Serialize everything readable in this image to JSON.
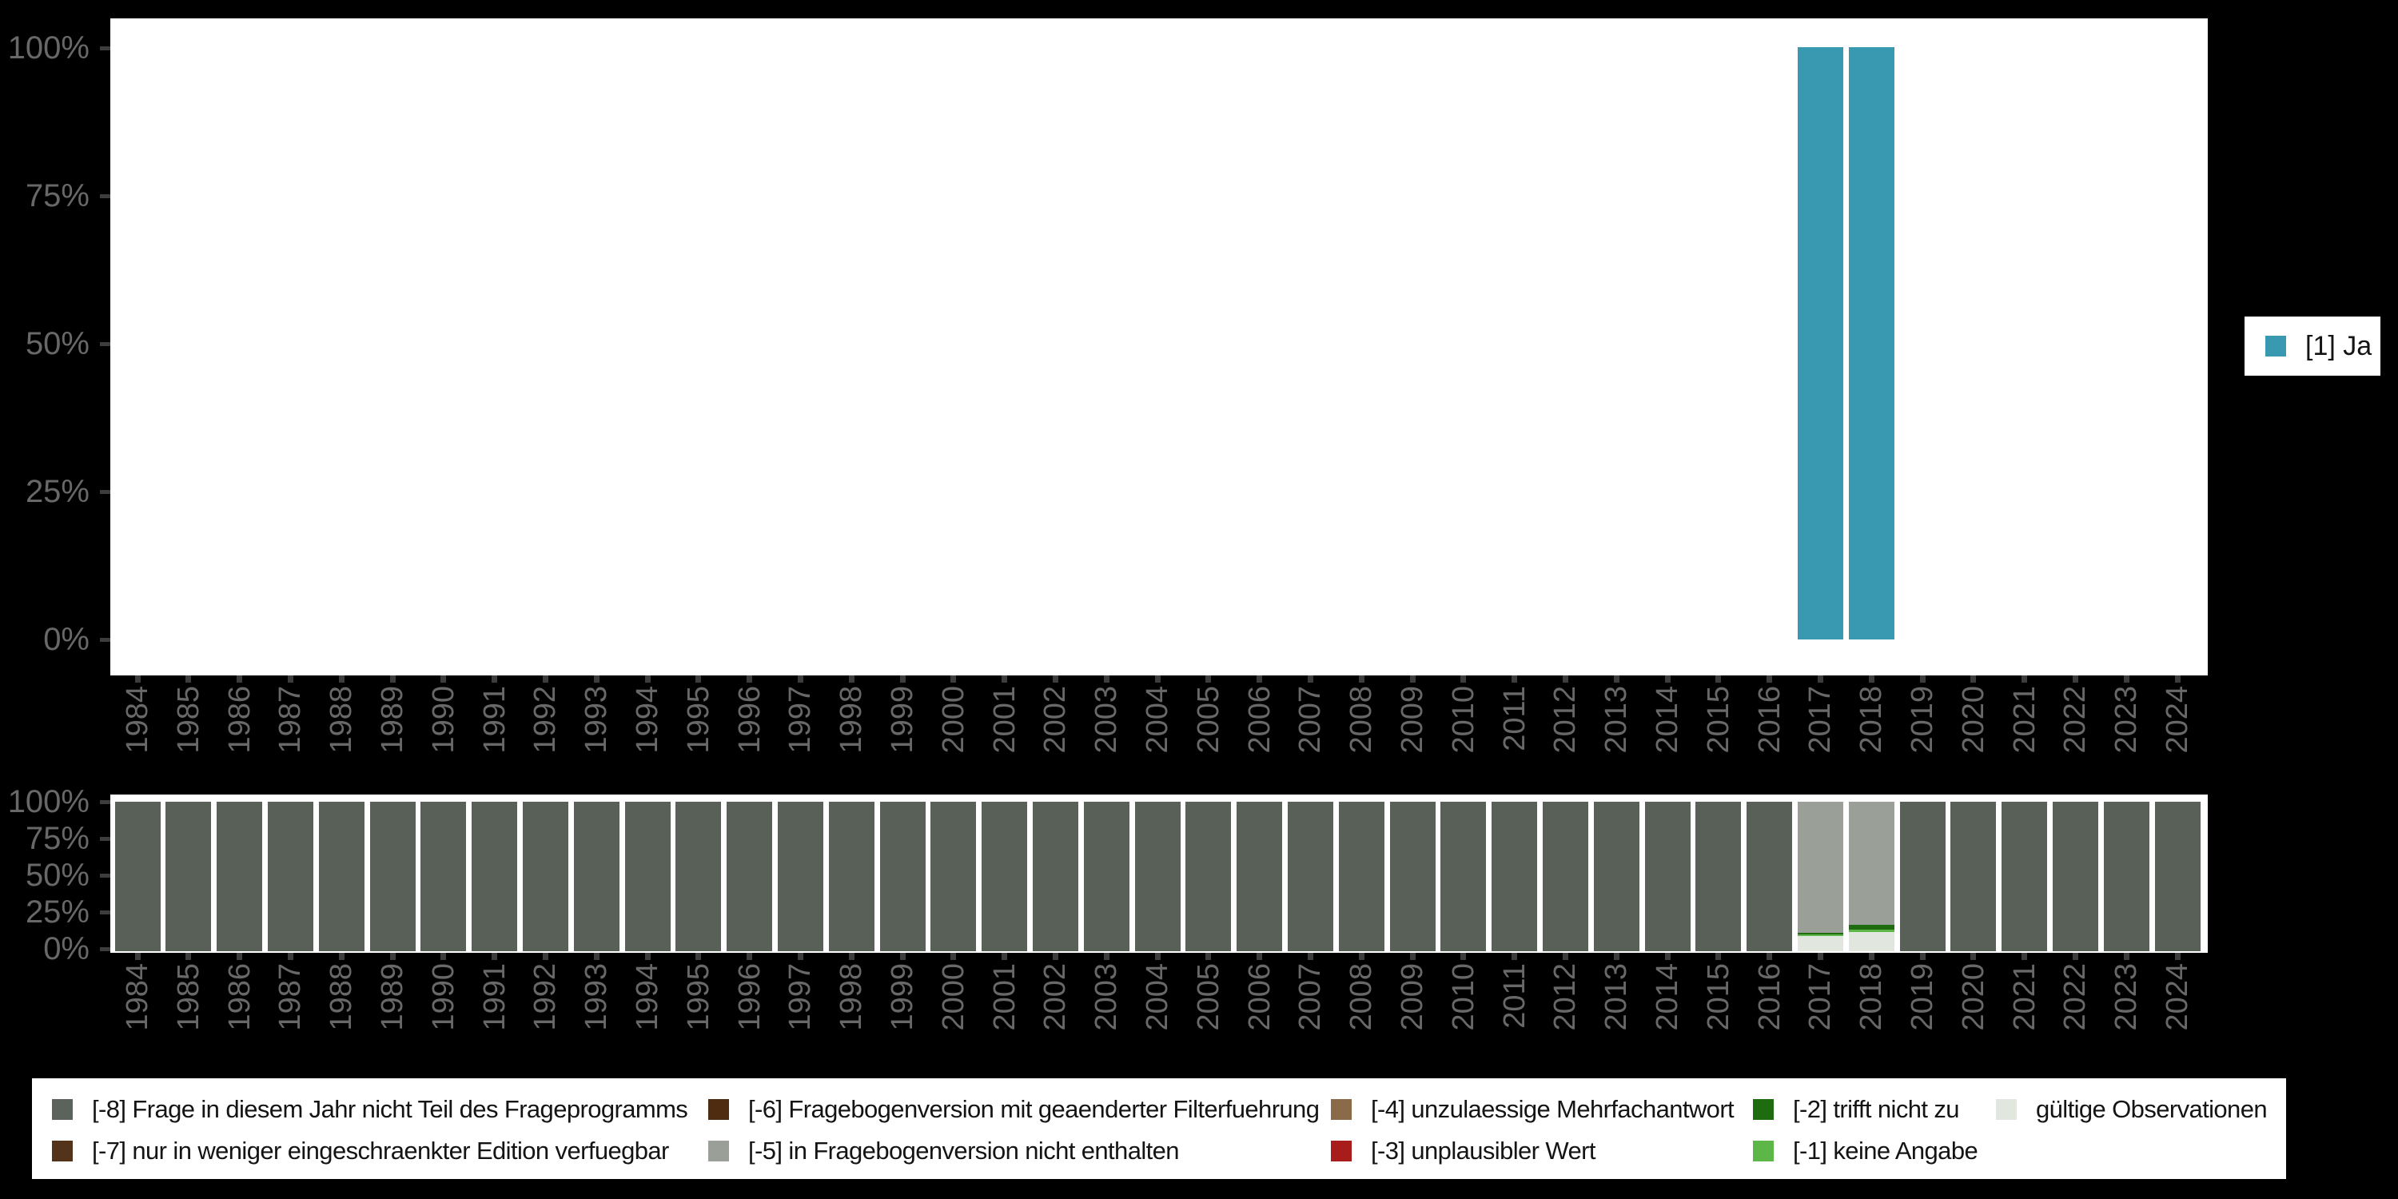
{
  "colors": {
    "page_background": "#000000",
    "plot_background": "#ffffff",
    "axis_text": "#686868",
    "tick": "#3d3d3d",
    "legend_text": "#141414",
    "teal": "#3999b0"
  },
  "axis": {
    "ytick_labels": [
      "100%",
      "75%",
      "50%",
      "25%",
      "0%"
    ]
  },
  "legend1": {
    "label": "[1] Ja",
    "color": "#3999b0"
  },
  "legend2": {
    "items": [
      {
        "label": "[-8] Frage in diesem Jahr nicht Teil des Frageprogramms",
        "color": "#5c635c",
        "col": 0,
        "row": 0
      },
      {
        "label": "[-7] nur in weniger eingeschraenkter Edition verfuegbar",
        "color": "#53341a",
        "col": 0,
        "row": 1
      },
      {
        "label": "[-6] Fragebogenversion mit geaenderter Filterfuehrung",
        "color": "#4f2b10",
        "col": 1,
        "row": 0
      },
      {
        "label": "[-5] in Fragebogenversion nicht enthalten",
        "color": "#9aa097",
        "col": 1,
        "row": 1
      },
      {
        "label": "[-4] unzulaessige Mehrfachantwort",
        "color": "#8a6a48",
        "col": 2,
        "row": 0
      },
      {
        "label": "[-3] unplausibler Wert",
        "color": "#a81c1c",
        "col": 2,
        "row": 1
      },
      {
        "label": "[-2] trifft nicht zu",
        "color": "#1e6b10",
        "col": 3,
        "row": 0
      },
      {
        "label": "[-1] keine Angabe",
        "color": "#5cb648",
        "col": 3,
        "row": 1
      },
      {
        "label": "gültige Observationen",
        "color": "#e1e6df",
        "col": 4,
        "row": 0
      }
    ]
  },
  "chart_data": [
    {
      "type": "bar",
      "stacked": true,
      "title": "",
      "xlabel": "",
      "ylabel": "",
      "ylim": [
        0,
        100
      ],
      "ytick_labels": [
        "100%",
        "75%",
        "50%",
        "25%",
        "0%"
      ],
      "grid": false,
      "legend_position": "right",
      "categories": [
        "1984",
        "1985",
        "1986",
        "1987",
        "1988",
        "1989",
        "1990",
        "1991",
        "1992",
        "1993",
        "1994",
        "1995",
        "1996",
        "1997",
        "1998",
        "1999",
        "2000",
        "2001",
        "2002",
        "2003",
        "2004",
        "2005",
        "2006",
        "2007",
        "2008",
        "2009",
        "2010",
        "2011",
        "2012",
        "2013",
        "2014",
        "2015",
        "2016",
        "2017",
        "2018",
        "2019",
        "2020",
        "2021",
        "2022",
        "2023",
        "2024"
      ],
      "series": [
        {
          "name": "[1] Ja",
          "color": "#3999b0",
          "values": [
            0,
            0,
            0,
            0,
            0,
            0,
            0,
            0,
            0,
            0,
            0,
            0,
            0,
            0,
            0,
            0,
            0,
            0,
            0,
            0,
            0,
            0,
            0,
            0,
            0,
            0,
            0,
            0,
            0,
            0,
            0,
            0,
            0,
            100,
            100,
            0,
            0,
            0,
            0,
            0,
            0
          ]
        }
      ]
    },
    {
      "type": "bar",
      "stacked": true,
      "title": "",
      "xlabel": "",
      "ylabel": "",
      "ylim": [
        0,
        100
      ],
      "ytick_labels": [
        "100%",
        "75%",
        "50%",
        "25%",
        "0%"
      ],
      "grid": false,
      "legend_position": "bottom",
      "categories": [
        "1984",
        "1985",
        "1986",
        "1987",
        "1988",
        "1989",
        "1990",
        "1991",
        "1992",
        "1993",
        "1994",
        "1995",
        "1996",
        "1997",
        "1998",
        "1999",
        "2000",
        "2001",
        "2002",
        "2003",
        "2004",
        "2005",
        "2006",
        "2007",
        "2008",
        "2009",
        "2010",
        "2011",
        "2012",
        "2013",
        "2014",
        "2015",
        "2016",
        "2017",
        "2018",
        "2019",
        "2020",
        "2021",
        "2022",
        "2023",
        "2024"
      ],
      "series": [
        {
          "name": "[-8] Frage in diesem Jahr nicht Teil des Frageprogramms",
          "color": "#596057",
          "values": [
            100,
            100,
            100,
            100,
            100,
            100,
            100,
            100,
            100,
            100,
            100,
            100,
            100,
            100,
            100,
            100,
            100,
            100,
            100,
            100,
            100,
            100,
            100,
            100,
            100,
            100,
            100,
            100,
            100,
            100,
            100,
            100,
            100,
            0,
            0,
            100,
            100,
            100,
            100,
            100,
            100
          ]
        },
        {
          "name": "[-5] in Fragebogenversion nicht enthalten",
          "color": "#9aa097",
          "values": [
            0,
            0,
            0,
            0,
            0,
            0,
            0,
            0,
            0,
            0,
            0,
            0,
            0,
            0,
            0,
            0,
            0,
            0,
            0,
            0,
            0,
            0,
            0,
            0,
            0,
            0,
            0,
            0,
            0,
            0,
            0,
            0,
            0,
            87.5,
            82.5,
            0,
            0,
            0,
            0,
            0,
            0
          ]
        },
        {
          "name": "[-2] trifft nicht zu",
          "color": "#1e6b10",
          "values": [
            0,
            0,
            0,
            0,
            0,
            0,
            0,
            0,
            0,
            0,
            0,
            0,
            0,
            0,
            0,
            0,
            0,
            0,
            0,
            0,
            0,
            0,
            0,
            0,
            0,
            0,
            0,
            0,
            0,
            0,
            0,
            0,
            0,
            1.5,
            3,
            0,
            0,
            0,
            0,
            0,
            0
          ]
        },
        {
          "name": "[-1] keine Angabe",
          "color": "#5cb648",
          "values": [
            0,
            0,
            0,
            0,
            0,
            0,
            0,
            0,
            0,
            0,
            0,
            0,
            0,
            0,
            0,
            0,
            0,
            0,
            0,
            0,
            0,
            0,
            0,
            0,
            0,
            0,
            0,
            0,
            0,
            0,
            0,
            0,
            0,
            1,
            1.5,
            0,
            0,
            0,
            0,
            0,
            0
          ]
        },
        {
          "name": "gültige Observationen",
          "color": "#e1e6df",
          "values": [
            0,
            0,
            0,
            0,
            0,
            0,
            0,
            0,
            0,
            0,
            0,
            0,
            0,
            0,
            0,
            0,
            0,
            0,
            0,
            0,
            0,
            0,
            0,
            0,
            0,
            0,
            0,
            0,
            0,
            0,
            0,
            0,
            0,
            10,
            13,
            0,
            0,
            0,
            0,
            0,
            0
          ]
        }
      ]
    }
  ]
}
